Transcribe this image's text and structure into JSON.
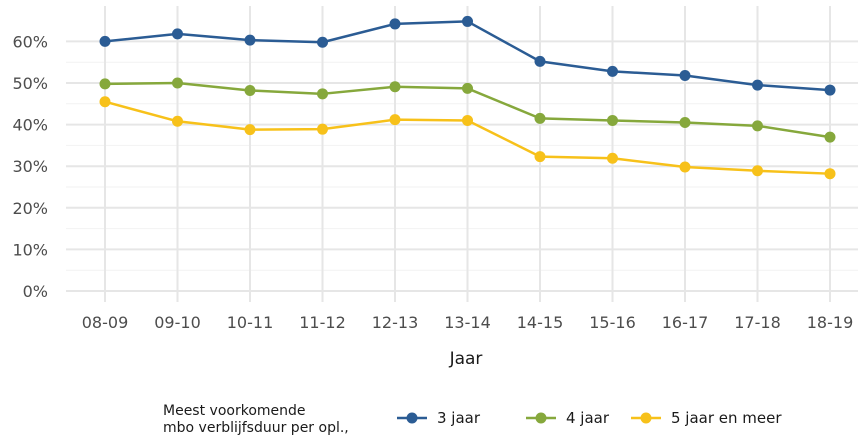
{
  "chart_data": {
    "type": "line",
    "categories": [
      "08-09",
      "09-10",
      "10-11",
      "11-12",
      "12-13",
      "13-14",
      "14-15",
      "15-16",
      "16-17",
      "17-18",
      "18-19"
    ],
    "series": [
      {
        "name": "3 jaar",
        "color": "#2b5c94",
        "values": [
          60,
          61.8,
          60.3,
          59.8,
          64.2,
          64.8,
          55.2,
          52.8,
          51.8,
          49.5,
          48.3
        ]
      },
      {
        "name": "4 jaar",
        "color": "#86a83c",
        "values": [
          49.8,
          50.0,
          48.2,
          47.4,
          49.1,
          48.7,
          41.5,
          41.0,
          40.5,
          39.7,
          37.0
        ]
      },
      {
        "name": "5 jaar en meer",
        "color": "#f7c11a",
        "values": [
          45.5,
          40.8,
          38.8,
          38.9,
          41.2,
          41.0,
          32.3,
          31.9,
          29.8,
          28.9,
          28.2
        ]
      }
    ],
    "xlabel": "Jaar",
    "ylabel": "",
    "ylim": [
      0,
      65
    ],
    "yticks": [
      "0%",
      "10%",
      "20%",
      "30%",
      "40%",
      "50%",
      "60%"
    ],
    "ytick_values": [
      0,
      10,
      20,
      30,
      40,
      50,
      60
    ],
    "grid": true,
    "legend": {
      "placement": "bottom",
      "title_lines": [
        "Meest voorkomende",
        "mbo verblijfsduur per opl.,"
      ]
    }
  }
}
